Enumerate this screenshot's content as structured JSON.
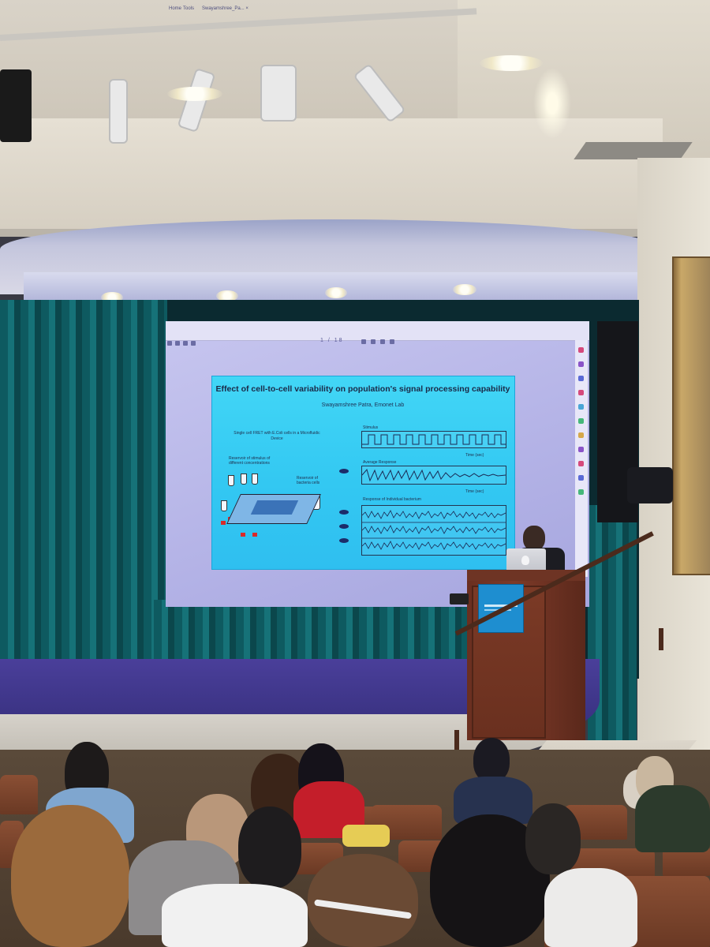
{
  "scene": "lecture auditorium with presenter at podium",
  "slide": {
    "title": "Effect of cell-to-cell variability on population's signal processing capability",
    "subtitle": "Swayamshree Patra, Emonet Lab",
    "left_heading": "Single cell FRET with E.Coli cells in a Microfluidic Device",
    "reservoir_stimulus": "Reservoir of stimulus of different concentrations",
    "reservoir_bacteria": "Reservoir of bacteria cells",
    "panel_stimulus": "Stimulus",
    "panel_average": "Average Response",
    "panel_individual": "Response of Individual bacterium",
    "time_label": "Time (sec)"
  },
  "viewer": {
    "toolbar_items": [
      "Home",
      "Tools",
      "Swayamshree_Pa... ×"
    ],
    "page_indicator": "1 / 18"
  },
  "colors": {
    "slide_background": "#3fd3f5",
    "screen_glow": "#b8b7e8",
    "curtain": "#136a70",
    "stage_floor": "#3d3488",
    "podium_wood": "#6e3424",
    "podium_sign": "#1e8ed0"
  }
}
